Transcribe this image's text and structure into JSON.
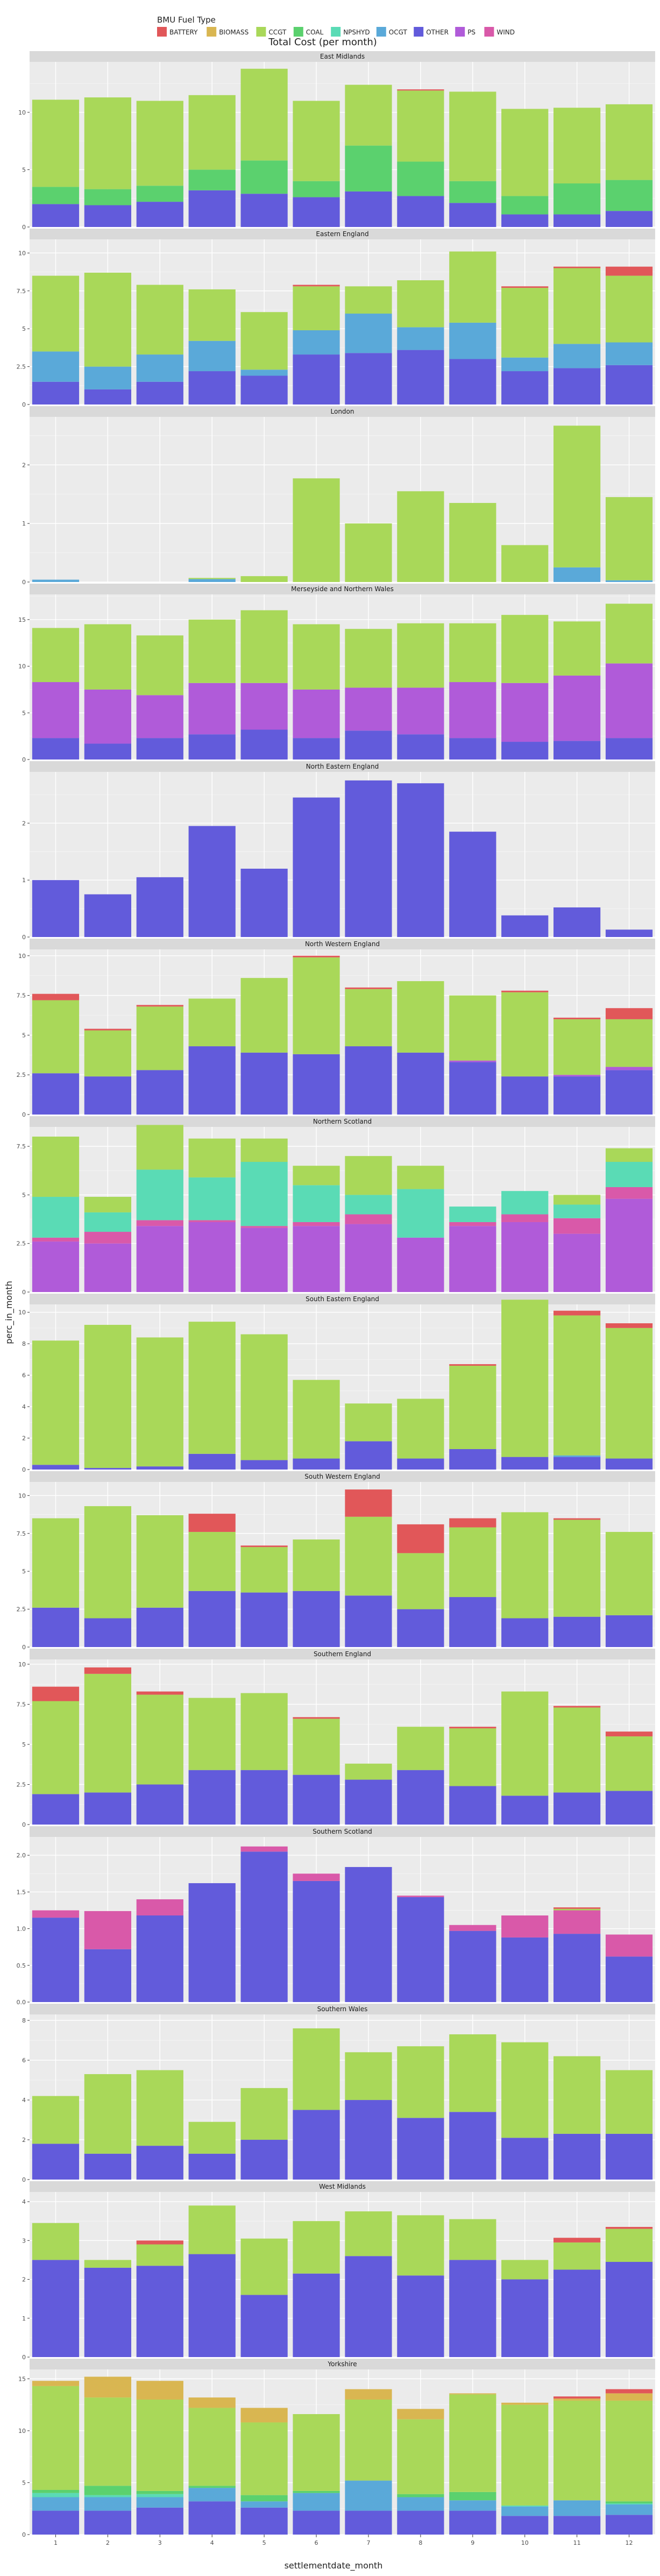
{
  "chart_data": {
    "type": "bar",
    "stacked": true,
    "faceted": true,
    "title": "Total Cost (per month)",
    "xlabel": "settlementdate_month",
    "ylabel": "perc_in_month",
    "legend_title": "BMU Fuel Type",
    "legend_position": "top-left",
    "grid": true,
    "categories": [
      "1",
      "2",
      "3",
      "4",
      "5",
      "6",
      "7",
      "8",
      "9",
      "10",
      "11",
      "12"
    ],
    "fuels": [
      "BATTERY",
      "BIOMASS",
      "CCGT",
      "COAL",
      "NPSHYD",
      "OCGT",
      "OTHER",
      "PS",
      "WIND"
    ],
    "colors": {
      "BATTERY": "#E15759",
      "BIOMASS": "#D9B651",
      "CCGT": "#A9D859",
      "COAL": "#5BD16E",
      "NPSHYD": "#5ADBB5",
      "OCGT": "#5AA9D9",
      "OTHER": "#625BDB",
      "PS": "#B05BD9",
      "WIND": "#D959A9"
    },
    "stack_order": [
      "OTHER",
      "PS",
      "WIND",
      "OCGT",
      "NPSHYD",
      "COAL",
      "CCGT",
      "BIOMASS",
      "BATTERY"
    ],
    "facets": [
      {
        "name": "East Midlands",
        "ylim": [
          0,
          14.4
        ],
        "ticks": [
          0,
          5,
          10
        ],
        "tick_labels": [
          "0",
          "5",
          "10"
        ],
        "series": {
          "OTHER": [
            2.0,
            1.9,
            2.2,
            3.2,
            2.9,
            2.6,
            3.1,
            2.7,
            2.1,
            1.1,
            1.1,
            1.4
          ],
          "COAL": [
            1.5,
            1.4,
            1.4,
            1.8,
            2.9,
            1.4,
            4.0,
            3.0,
            1.9,
            1.6,
            2.7,
            2.7
          ],
          "CCGT": [
            7.6,
            8.0,
            7.4,
            6.5,
            8.0,
            7.0,
            5.3,
            6.2,
            7.8,
            7.6,
            6.6,
            6.6
          ],
          "BATTERY": [
            0,
            0,
            0,
            0,
            0,
            0,
            0,
            0.1,
            0,
            0,
            0,
            0
          ]
        }
      },
      {
        "name": "Eastern England",
        "ylim": [
          0,
          10.9
        ],
        "ticks": [
          0,
          2.5,
          5,
          7.5,
          10
        ],
        "tick_labels": [
          "0",
          "2.5",
          "5",
          "7.5",
          "10"
        ],
        "series": {
          "OTHER": [
            1.5,
            1.0,
            1.5,
            2.2,
            1.9,
            3.3,
            3.4,
            3.6,
            3.0,
            2.2,
            2.4,
            2.6
          ],
          "OCGT": [
            2.0,
            1.5,
            1.8,
            2.0,
            0.4,
            1.6,
            2.6,
            1.5,
            2.4,
            0.9,
            1.6,
            1.5
          ],
          "CCGT": [
            5.0,
            6.2,
            4.6,
            3.4,
            3.8,
            2.9,
            1.8,
            3.1,
            4.7,
            4.6,
            5.0,
            4.4
          ],
          "BATTERY": [
            0,
            0,
            0,
            0,
            0,
            0.1,
            0,
            0,
            0,
            0.1,
            0.1,
            0.6
          ]
        }
      },
      {
        "name": "London",
        "ylim": [
          0,
          2.82
        ],
        "ticks": [
          0,
          1,
          2
        ],
        "tick_labels": [
          "0",
          "1",
          "2"
        ],
        "series": {
          "OCGT": [
            0.04,
            0,
            0,
            0.05,
            0,
            0,
            0,
            0,
            0,
            0,
            0.25,
            0.03
          ],
          "CCGT": [
            0,
            0,
            0,
            0.02,
            0.1,
            1.77,
            1.0,
            1.55,
            1.35,
            0.63,
            2.42,
            1.42
          ]
        }
      },
      {
        "name": "Merseyside and Northern Wales",
        "ylim": [
          0,
          17.7
        ],
        "ticks": [
          0,
          5,
          10,
          15
        ],
        "tick_labels": [
          "0",
          "5",
          "10",
          "15"
        ],
        "series": {
          "PS": [
            6.0,
            5.8,
            4.6,
            5.5,
            5.0,
            5.2,
            4.6,
            5.0,
            6.0,
            6.3,
            7.0,
            8.0
          ],
          "OTHER": [
            2.3,
            1.7,
            2.3,
            2.7,
            3.2,
            2.3,
            3.1,
            2.7,
            2.3,
            1.9,
            2.0,
            2.3
          ],
          "CCGT": [
            5.8,
            7.0,
            6.4,
            6.8,
            7.8,
            7.0,
            6.3,
            6.9,
            6.3,
            7.3,
            5.8,
            6.4
          ]
        }
      },
      {
        "name": "North Eastern England",
        "ylim": [
          0,
          2.9
        ],
        "ticks": [
          0,
          1,
          2
        ],
        "tick_labels": [
          "0",
          "1",
          "2"
        ],
        "series": {
          "OTHER": [
            1.0,
            0.75,
            1.05,
            1.95,
            1.2,
            2.45,
            2.75,
            2.7,
            1.85,
            0.38,
            0.52,
            0.13
          ]
        }
      },
      {
        "name": "North Western England",
        "ylim": [
          0,
          10.4
        ],
        "ticks": [
          0,
          2.5,
          5,
          7.5,
          10
        ],
        "tick_labels": [
          "0",
          "2.5",
          "5",
          "7.5",
          "10"
        ],
        "series": {
          "OTHER": [
            2.6,
            2.4,
            2.8,
            4.3,
            3.9,
            3.8,
            4.3,
            3.9,
            3.3,
            2.4,
            2.4,
            2.8
          ],
          "PS": [
            0,
            0,
            0,
            0,
            0,
            0,
            0,
            0,
            0.1,
            0,
            0.1,
            0.2
          ],
          "CCGT": [
            4.6,
            2.9,
            4.0,
            3.0,
            4.7,
            6.1,
            3.6,
            4.5,
            4.1,
            5.3,
            3.5,
            3.0
          ],
          "BATTERY": [
            0.4,
            0.1,
            0.1,
            0,
            0,
            0.1,
            0.1,
            0,
            0,
            0.1,
            0.1,
            0.7
          ]
        }
      },
      {
        "name": "Northern Scotland",
        "ylim": [
          0,
          8.5
        ],
        "ticks": [
          0,
          2.5,
          5,
          7.5
        ],
        "tick_labels": [
          "0",
          "2.5",
          "5",
          "7.5"
        ],
        "series": {
          "PS": [
            2.6,
            2.5,
            3.4,
            3.6,
            3.3,
            3.4,
            3.5,
            2.8,
            3.4,
            3.6,
            3.0,
            4.8
          ],
          "WIND": [
            0.2,
            0.6,
            0.3,
            0.1,
            0.1,
            0.2,
            0.5,
            0,
            0.2,
            0.4,
            0.8,
            0.6
          ],
          "NPSHYD": [
            2.1,
            1.0,
            2.6,
            2.2,
            3.3,
            1.9,
            1.0,
            2.5,
            0.8,
            1.2,
            0.7,
            1.3
          ],
          "CCGT": [
            3.1,
            0.8,
            2.3,
            2.0,
            1.2,
            1.0,
            2.0,
            1.2,
            0,
            0,
            0.5,
            0.7
          ]
        }
      },
      {
        "name": "South Eastern England",
        "ylim": [
          0,
          10.5
        ],
        "ticks": [
          0,
          2,
          4,
          6,
          8,
          10
        ],
        "tick_labels": [
          "0",
          "2",
          "4",
          "6",
          "8",
          "10"
        ],
        "series": {
          "OTHER": [
            0.3,
            0.1,
            0.2,
            1.0,
            0.6,
            0.7,
            1.8,
            0.7,
            1.3,
            0.8,
            0.8,
            0.7
          ],
          "OCGT": [
            0,
            0,
            0,
            0,
            0,
            0,
            0,
            0,
            0,
            0,
            0.1,
            0
          ],
          "CCGT": [
            7.9,
            9.1,
            8.2,
            8.4,
            8.0,
            5.0,
            2.4,
            3.8,
            5.3,
            10.0,
            8.9,
            8.3
          ],
          "BATTERY": [
            0,
            0,
            0,
            0,
            0,
            0,
            0,
            0,
            0.1,
            0,
            0.3,
            0.3
          ]
        }
      },
      {
        "name": "South Western England",
        "ylim": [
          0,
          10.9
        ],
        "ticks": [
          0,
          2.5,
          5,
          7.5,
          10
        ],
        "tick_labels": [
          "0",
          "2.5",
          "5",
          "7.5",
          "10"
        ],
        "series": {
          "OTHER": [
            2.6,
            1.9,
            2.6,
            3.7,
            3.6,
            3.7,
            3.4,
            2.5,
            3.3,
            1.9,
            2.0,
            2.1
          ],
          "CCGT": [
            5.9,
            7.4,
            6.1,
            3.9,
            3.0,
            3.4,
            5.2,
            3.7,
            4.6,
            7.0,
            6.4,
            5.5
          ],
          "BATTERY": [
            0,
            0,
            0,
            1.2,
            0.1,
            0,
            1.8,
            1.9,
            0.6,
            0,
            0.1,
            0
          ]
        }
      },
      {
        "name": "Southern England",
        "ylim": [
          0,
          10.3
        ],
        "ticks": [
          0,
          2.5,
          5,
          7.5,
          10
        ],
        "tick_labels": [
          "0",
          "2.5",
          "5",
          "7.5",
          "10"
        ],
        "series": {
          "OTHER": [
            1.9,
            2.0,
            2.5,
            3.4,
            3.4,
            3.1,
            2.8,
            3.4,
            2.4,
            1.8,
            2.0,
            2.1
          ],
          "CCGT": [
            5.8,
            7.4,
            5.6,
            4.5,
            4.8,
            3.5,
            1.0,
            2.7,
            3.6,
            6.5,
            5.3,
            3.4
          ],
          "BATTERY": [
            0.9,
            0.4,
            0.2,
            0,
            0,
            0.1,
            0,
            0,
            0.1,
            0,
            0.1,
            0.3
          ]
        }
      },
      {
        "name": "Southern Scotland",
        "ylim": [
          0,
          2.25
        ],
        "ticks": [
          0,
          0.5,
          1,
          1.5,
          2
        ],
        "tick_labels": [
          "0.0",
          "0.5",
          "1.0",
          "1.5",
          "2.0"
        ],
        "series": {
          "WIND": [
            0.1,
            0.52,
            0.22,
            0,
            0.07,
            0.1,
            0,
            0.02,
            0.08,
            0.3,
            0.32,
            0.3
          ],
          "OTHER": [
            1.15,
            0.72,
            1.18,
            1.62,
            2.05,
            1.65,
            1.84,
            1.43,
            0.97,
            0.88,
            0.93,
            0.62
          ],
          "CCGT": [
            0,
            0,
            0,
            0,
            0,
            0,
            0,
            0,
            0,
            0,
            0.02,
            0
          ],
          "BATTERY": [
            0,
            0,
            0,
            0,
            0,
            0,
            0,
            0,
            0,
            0,
            0.02,
            0
          ]
        }
      },
      {
        "name": "Southern Wales",
        "ylim": [
          0,
          8.3
        ],
        "ticks": [
          0,
          2,
          4,
          6,
          8
        ],
        "tick_labels": [
          "0",
          "2",
          "4",
          "6",
          "8"
        ],
        "series": {
          "OTHER": [
            1.8,
            1.3,
            1.7,
            1.3,
            2.0,
            3.5,
            4.0,
            3.1,
            3.4,
            2.1,
            2.3,
            2.3
          ],
          "CCGT": [
            2.4,
            4.0,
            3.8,
            1.6,
            2.6,
            4.1,
            2.4,
            3.6,
            3.9,
            4.8,
            3.9,
            3.2
          ]
        }
      },
      {
        "name": "West Midlands",
        "ylim": [
          0,
          4.25
        ],
        "ticks": [
          0,
          1,
          2,
          3,
          4
        ],
        "tick_labels": [
          "0",
          "1",
          "2",
          "3",
          "4"
        ],
        "series": {
          "OTHER": [
            2.5,
            2.3,
            2.35,
            2.65,
            1.6,
            2.15,
            2.6,
            2.1,
            2.5,
            2.0,
            2.25,
            2.45
          ],
          "CCGT": [
            0.95,
            0.2,
            0.55,
            1.25,
            1.45,
            1.35,
            1.15,
            1.55,
            1.05,
            0.5,
            0.7,
            0.85
          ],
          "BATTERY": [
            0,
            0,
            0.1,
            0,
            0,
            0,
            0,
            0,
            0,
            0,
            0.12,
            0.05
          ]
        }
      },
      {
        "name": "Yorkshire",
        "ylim": [
          0,
          15.9
        ],
        "ticks": [
          0,
          5,
          10,
          15
        ],
        "tick_labels": [
          "0",
          "5",
          "10",
          "15"
        ],
        "series": {
          "OTHER": [
            2.3,
            2.3,
            2.6,
            3.2,
            2.6,
            2.3,
            2.3,
            2.3,
            2.3,
            1.8,
            1.8,
            1.9
          ],
          "OCGT": [
            1.3,
            1.3,
            1.0,
            1.3,
            0.6,
            1.7,
            2.9,
            1.3,
            1.0,
            0.9,
            1.5,
            1.0
          ],
          "NPSHYD": [
            0.4,
            0.2,
            0.3,
            0,
            0,
            0,
            0,
            0,
            0,
            0.1,
            0,
            0.1
          ],
          "COAL": [
            0.3,
            0.9,
            0.3,
            0.2,
            0.6,
            0.2,
            0,
            0.3,
            0.8,
            0,
            0,
            0.2
          ],
          "CCGT": [
            10.0,
            8.5,
            8.8,
            7.5,
            7.0,
            7.4,
            7.8,
            7.2,
            9.4,
            9.7,
            9.6,
            9.7
          ],
          "BIOMASS": [
            0.5,
            2.0,
            1.8,
            1.0,
            1.4,
            0,
            1.0,
            1.0,
            0.1,
            0.2,
            0.2,
            0.7
          ],
          "BATTERY": [
            0,
            0,
            0,
            0,
            0,
            0,
            0,
            0,
            0,
            0,
            0.2,
            0.4
          ]
        }
      }
    ]
  }
}
